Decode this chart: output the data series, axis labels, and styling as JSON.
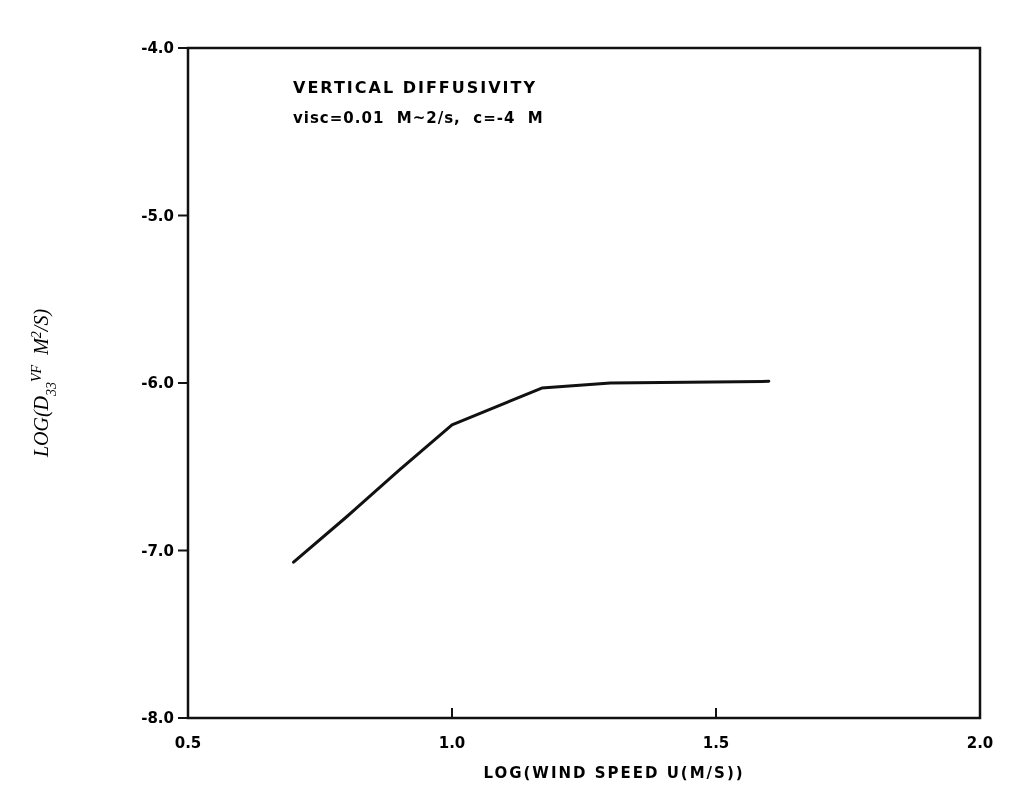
{
  "chart_data": {
    "type": "line",
    "title": "VERTICAL DIFFUSIVITY",
    "subtitle": "visc=0.01  M~2/s,  c=-4  M",
    "xlabel": "LOG(WIND SPEED U(M/S))",
    "ylabel": "LOG(D$_{33}$$^{VF}$  M$^{2}$/S)",
    "x": [
      0.7,
      0.8,
      0.9,
      1.0,
      1.17,
      1.3,
      1.6
    ],
    "series": [
      {
        "color": "#111111",
        "values": [
          -7.07,
          -6.8,
          -6.52,
          -6.25,
          -6.03,
          -6.0,
          -5.99
        ]
      }
    ],
    "xlim": [
      0.5,
      2.0
    ],
    "ylim": [
      -8,
      -4
    ],
    "xticks": [
      {
        "value": 0.5,
        "label": "0.5"
      },
      {
        "value": 1.0,
        "label": "1.0"
      },
      {
        "value": 1.5,
        "label": "1.5"
      },
      {
        "value": 2.0,
        "label": "2.0"
      }
    ],
    "yticks": [
      {
        "value": -8,
        "label": "-8.0"
      },
      {
        "value": -7,
        "label": "-7.0"
      },
      {
        "value": -6,
        "label": "-6.0"
      },
      {
        "value": -5,
        "label": "-5.0"
      },
      {
        "value": -4,
        "label": "-4.0"
      }
    ],
    "grid": false,
    "marker": "none",
    "line_style": "solid"
  }
}
